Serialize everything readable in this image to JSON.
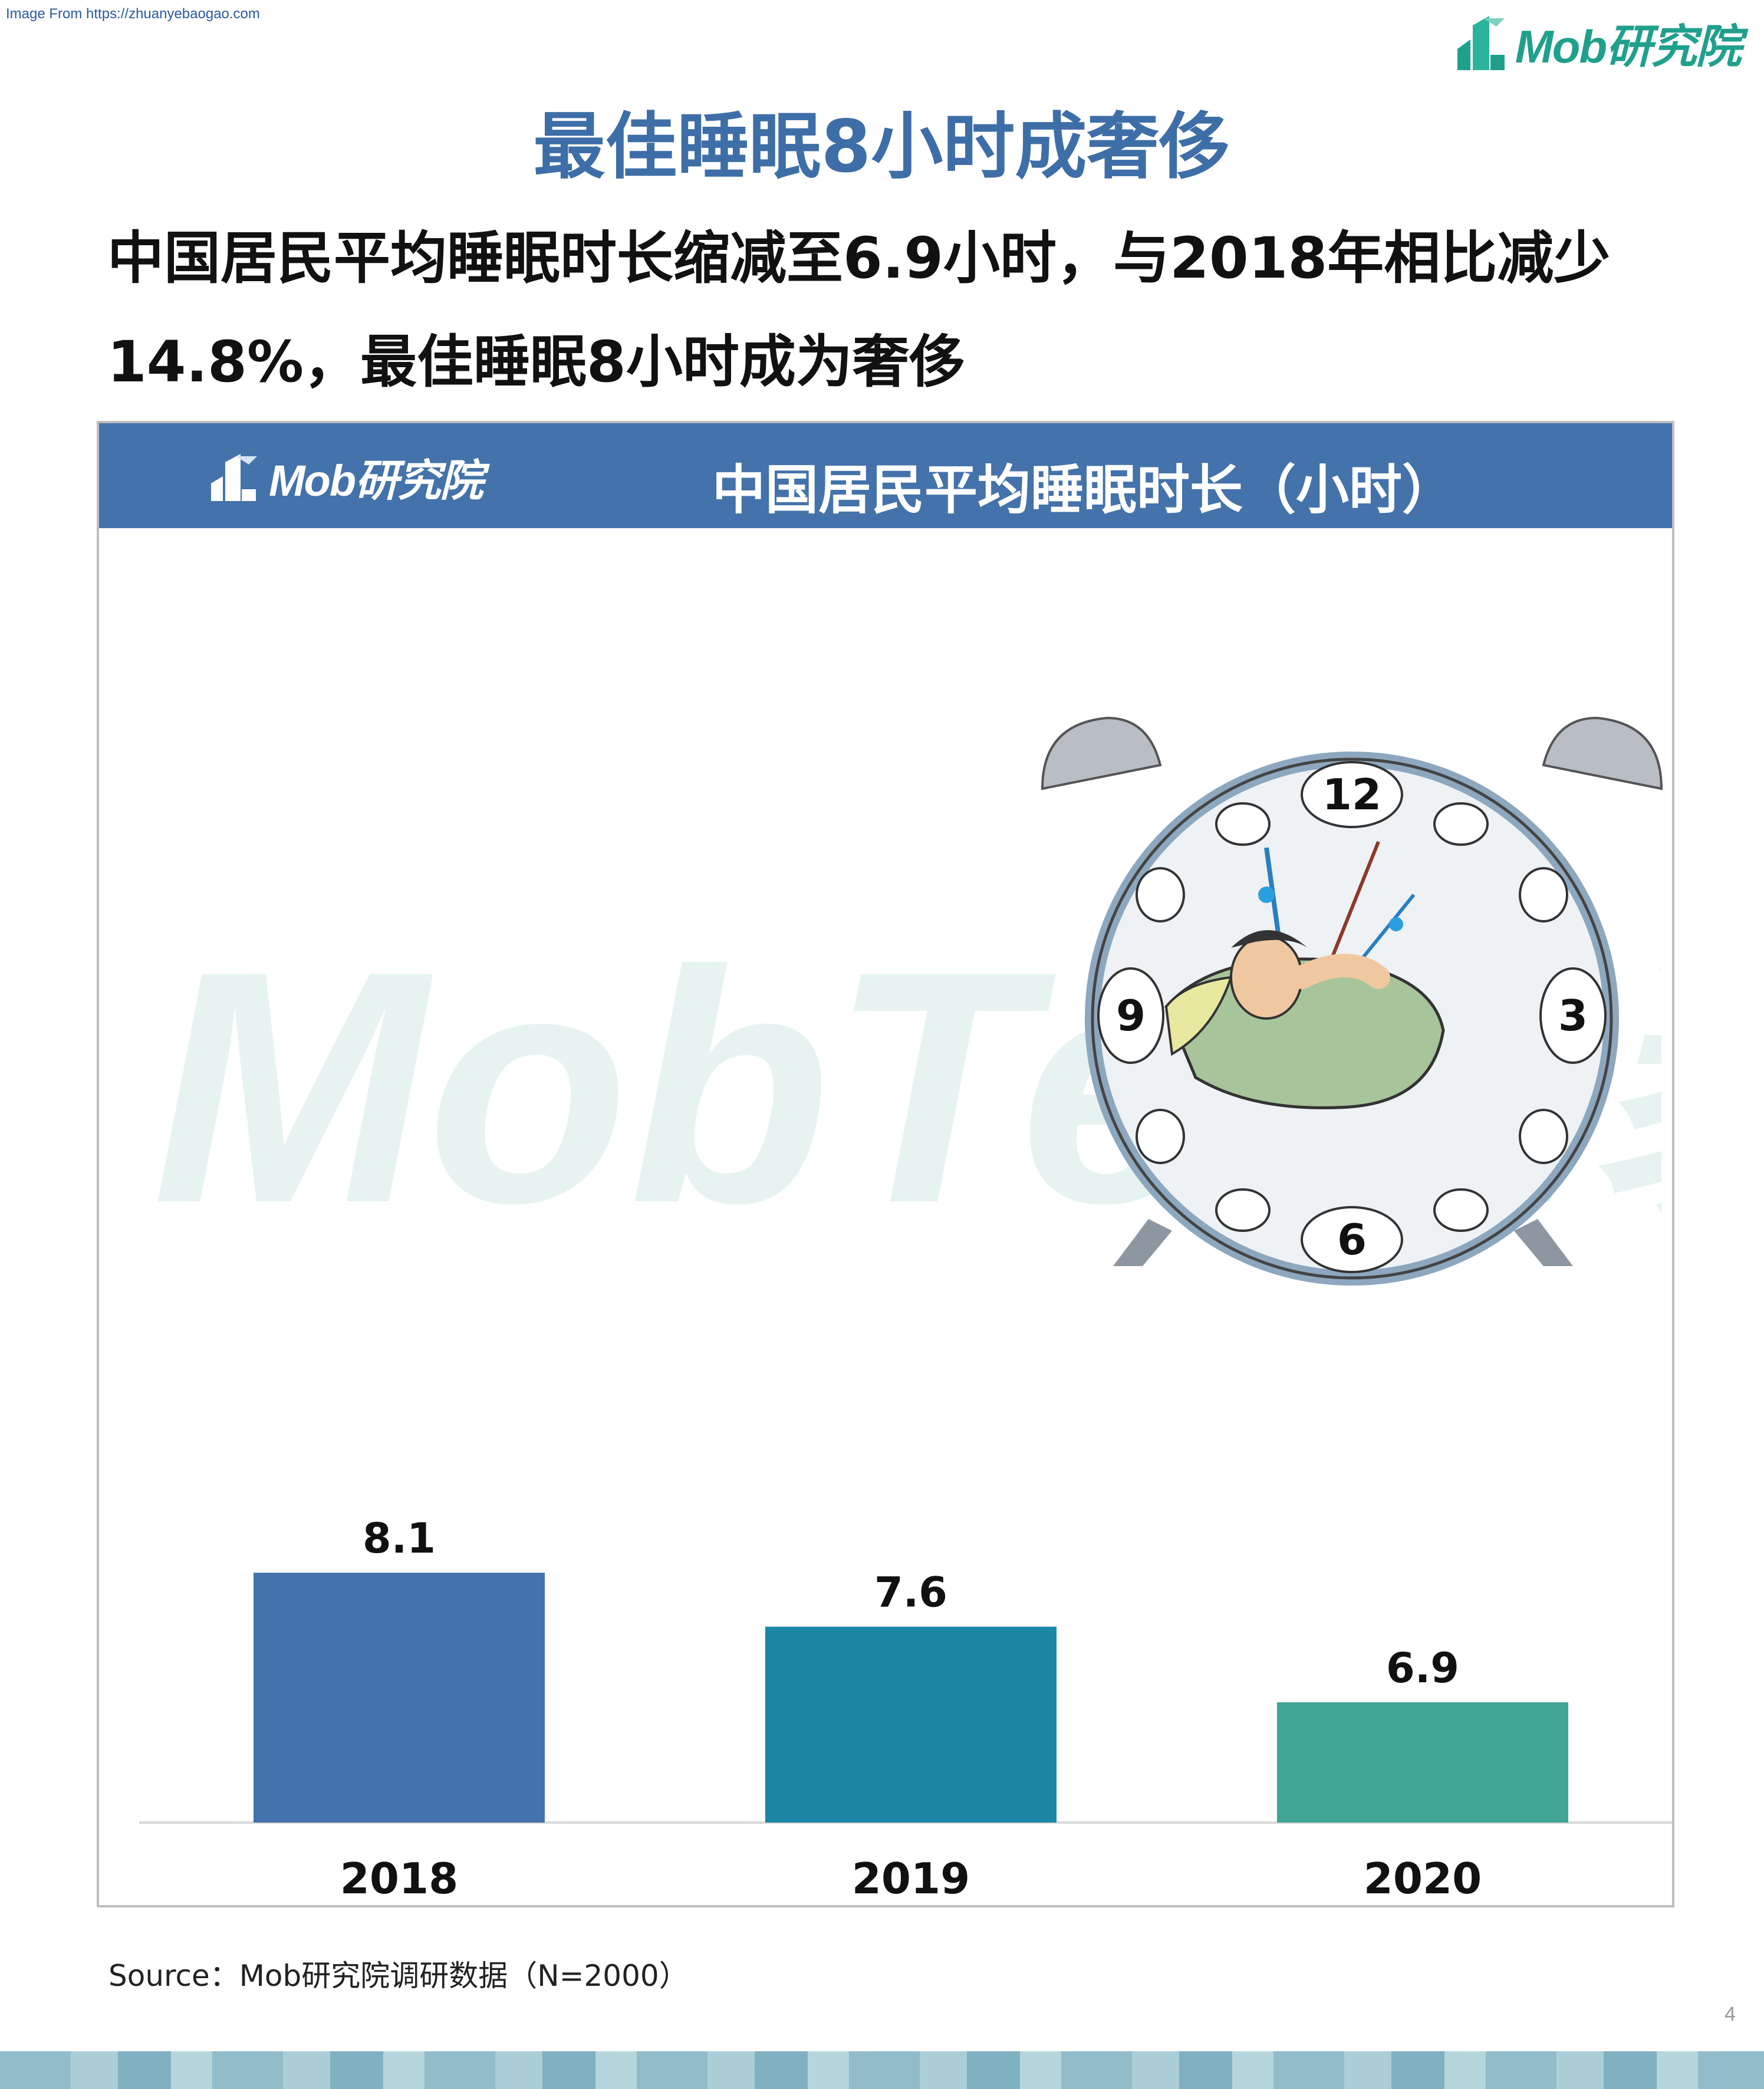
{
  "page": {
    "source_top": "Image From https://zhuanyebaogao.com",
    "brand": "Mob研究院",
    "main_title": "最佳睡眠8小时成奢侈",
    "headline_line1": "中国居民平均睡眠时长缩减至6.9小时，与2018年相比减少",
    "headline_line2": "14.8%，最佳睡眠8小时成为奢侈",
    "panel_brand": "Mob研究院",
    "watermark": "MobTech袤博",
    "source_bottom": "Source：Mob研究院调研数据（N=2000）",
    "page_number": "4"
  },
  "colors": {
    "title": "#3e6ea7",
    "header": "#4472aa",
    "brand_green": "#20a08c"
  },
  "illustration": {
    "clock_numbers": [
      "12",
      "3",
      "6",
      "9"
    ]
  },
  "chart_data": {
    "type": "bar",
    "title": "中国居民平均睡眠时长（小时）",
    "categories": [
      "2018",
      "2019",
      "2020"
    ],
    "values": [
      8.1,
      7.6,
      6.9
    ],
    "colors": [
      "#4472aa",
      "#1b87a5",
      "#40a693"
    ],
    "grid": false,
    "legend": "none"
  }
}
